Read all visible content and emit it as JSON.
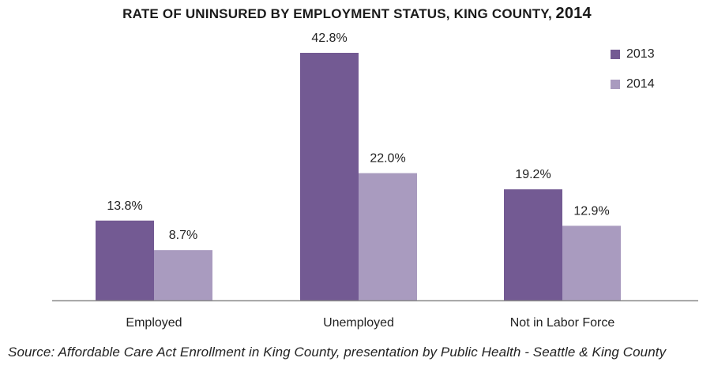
{
  "chart_data": {
    "type": "bar",
    "title": "RATE OF UNINSURED BY EMPLOYMENT STATUS, KING COUNTY,",
    "title_year": "2014",
    "categories": [
      "Employed",
      "Unemployed",
      "Not in Labor Force"
    ],
    "series": [
      {
        "name": "2013",
        "color": "#735a93",
        "values": [
          13.8,
          42.8,
          19.2
        ],
        "labels": [
          "13.8%",
          "42.8%",
          "19.2%"
        ]
      },
      {
        "name": "2014",
        "color": "#a99bbf",
        "values": [
          8.7,
          22.0,
          12.9
        ],
        "labels": [
          "8.7%",
          "22.0%",
          "12.9%"
        ]
      }
    ],
    "ylim": [
      0,
      45
    ],
    "grid": false,
    "legend_position": "top-right",
    "source": "Source: Affordable Care Act Enrollment in King County, presentation by Public Health - Seattle & King County"
  }
}
